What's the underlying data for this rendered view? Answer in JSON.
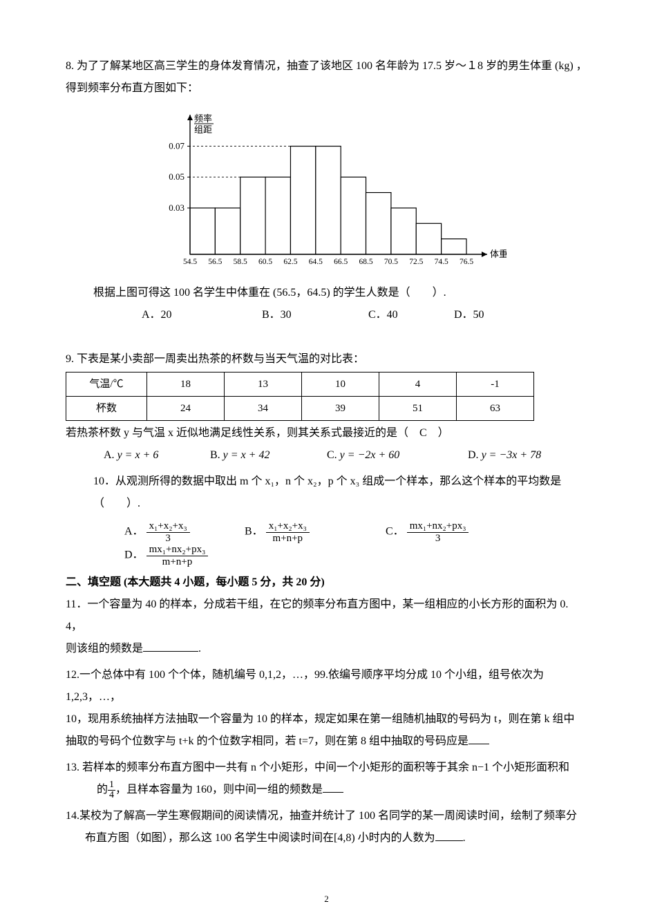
{
  "q8": {
    "prefix": "8. ",
    "text_line1": "为了了解某地区高三学生的身体发育情况，抽查了该地区 100 名年龄为 17.5 岁～１8 岁的男生体重 (kg) ，",
    "text_line2": "得到频率分布直方图如下：",
    "histogram": {
      "bg": "#ffffff",
      "axis_color": "#000000",
      "axis_width": 1.4,
      "bar_fill": "#ffffff",
      "bar_stroke": "#000000",
      "bar_stroke_width": 1.2,
      "grid_dash": "3 3",
      "y_label_top": "频率",
      "y_label_bottom": "组距",
      "x_label": "体重(kg)",
      "y_ticks": [
        0.03,
        0.05,
        0.07
      ],
      "x_ticks": [
        "54.5",
        "56.5",
        "58.5",
        "60.5",
        "62.5",
        "64.5",
        "66.5",
        "68.5",
        "70.5",
        "72.5",
        "74.5",
        "76.5"
      ],
      "bar_heights": [
        0.03,
        0.03,
        0.05,
        0.05,
        0.07,
        0.07,
        0.05,
        0.04,
        0.03,
        0.02,
        0.01
      ],
      "y_axis_max": 0.085
    },
    "conclude": "根据上图可得这 100 名学生中体重在 (56.5，64.5) 的学生人数是（　　）.",
    "options": {
      "A": "A．20",
      "B": "B．30",
      "C": "C．40",
      "D": "D．50"
    }
  },
  "q9": {
    "prefix": "9.  ",
    "lead": "下表是某小卖部一周卖出热茶的杯数与当天气温的对比表：",
    "table": {
      "row1_header": "气温/℃",
      "row1": [
        "18",
        "13",
        "10",
        "4",
        "-1"
      ],
      "row2_header": "杯数",
      "row2": [
        "24",
        "34",
        "39",
        "51",
        "63"
      ]
    },
    "tail": "若热茶杯数 y 与气温 x 近似地满足线性关系，则其关系式最接近的是（　C　）",
    "options": {
      "A": {
        "label": "A.",
        "eq": "y = x + 6"
      },
      "B": {
        "label": "B.",
        "eq": "y = x + 42"
      },
      "C": {
        "label": "C.",
        "eq": "y = −2x + 60"
      },
      "D": {
        "label": "D.",
        "eq": "y = −3x + 78"
      }
    }
  },
  "q10": {
    "prefix": "10．",
    "text": "从观测所得的数据中取出 m 个 x₁，n 个 x₂，p 个 x₃ 组成一个样本，那么这个样本的平均数是（　　）.",
    "options": {
      "A": {
        "label": "A．",
        "num": "x₁+x₂+x₃",
        "den": "3"
      },
      "B": {
        "label": "B．",
        "num": "x₁+x₂+x₃",
        "den": "m+n+p"
      },
      "C": {
        "label": "C．",
        "num": "mx₁+nx₂+px₃",
        "den": "3"
      },
      "D": {
        "label": "D．",
        "num": "mx₁+nx₂+px₃",
        "den": "m+n+p"
      }
    }
  },
  "section2": "二、填空题 (本大题共 4 小题，每小题 5 分，共 20 分)",
  "q11": {
    "prefix": "11．",
    "line1": "一个容量为 40 的样本，分成若干组，在它的频率分布直方图中，某一组相应的小长方形的面积为  0. 4，",
    "line2_pre": "则该组的频数是",
    "line2_post": "."
  },
  "q12": {
    "prefix": "12.",
    "line1": "一个总体中有 100 个个体，随机编号 0,1,2，…，99.依编号顺序平均分成 10 个小组，组号依次为 1,2,3，…，",
    "line2": "10，现用系统抽样方法抽取一个容量为 10 的样本，规定如果在第一组随机抽取的号码为 t，则在第 k 组中",
    "line3_pre": "抽取的号码个位数字与 t+k 的个位数字相同，若 t=7，则在第 8 组中抽取的号码应是"
  },
  "q13": {
    "prefix": "13. ",
    "line1": "若样本的频率分布直方图中一共有 n 个小矩形，中间一个小矩形的面积等于其余 n−1 个小矩形面积和",
    "line2_pre": "的",
    "frac_num": "1",
    "frac_den": "4",
    "line2_mid": "，且样本容量为 160，则中间一组的频数是"
  },
  "q14": {
    "prefix": "14.",
    "line1": "某校为了解高一学生寒假期间的阅读情况，抽查并统计了 100 名同学的某一周阅读时间，绘制了频率分",
    "line2_pre": "布直方图（如图），那么这 100 名学生中阅读时间在[4,8) 小时内的人数为",
    "line2_post": "."
  },
  "page_number": "2"
}
